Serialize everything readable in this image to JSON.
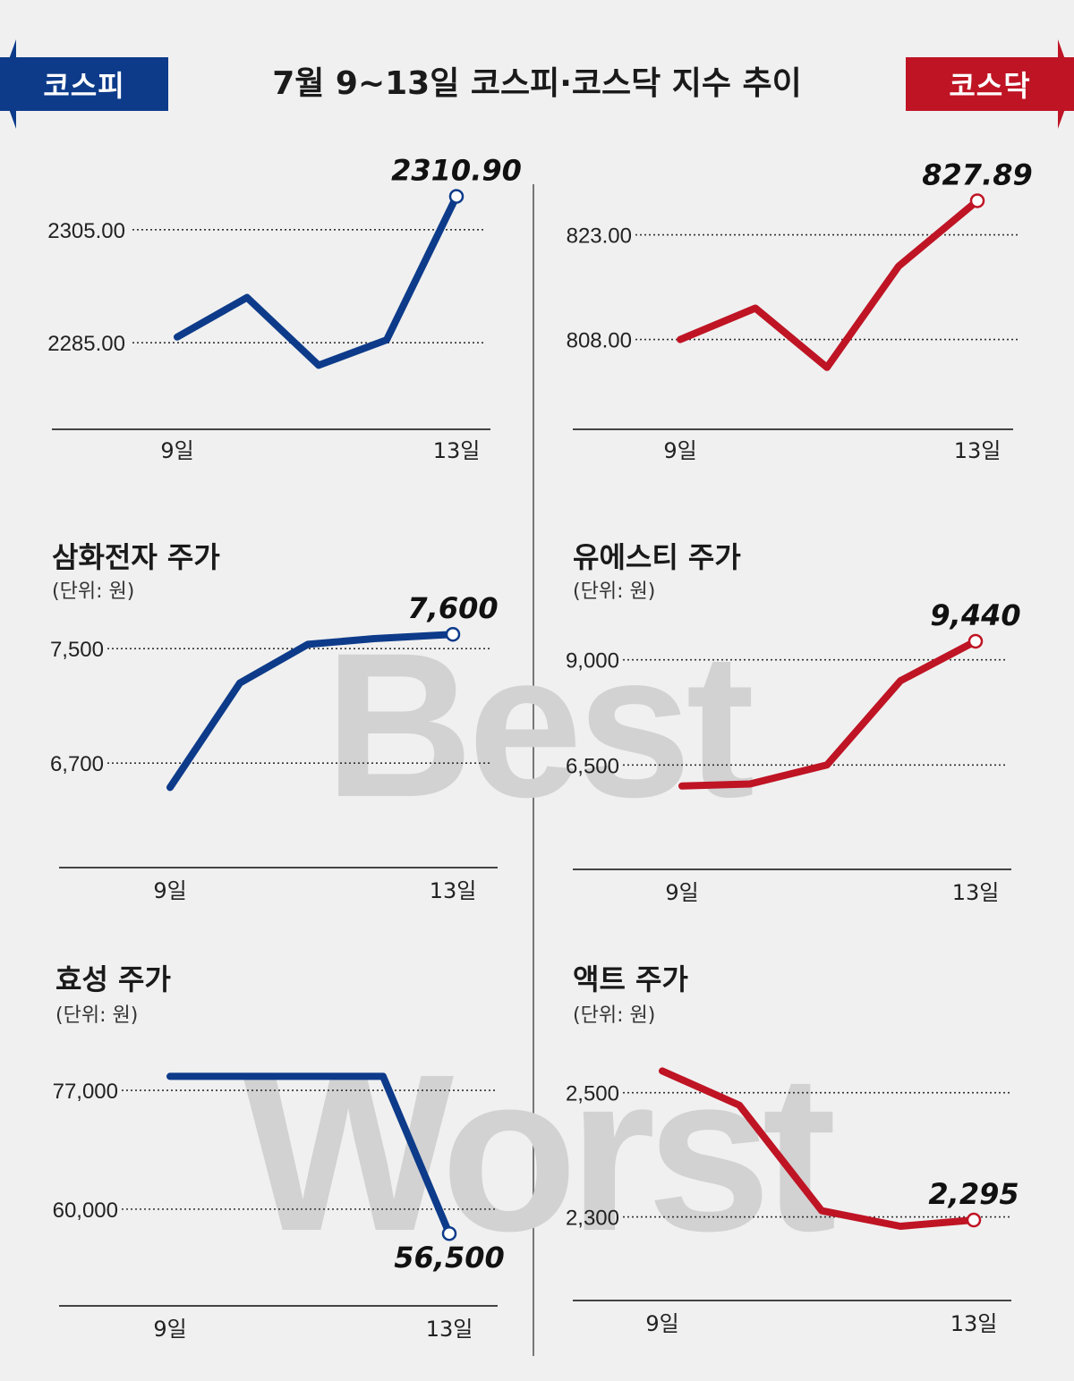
{
  "header": {
    "title": "7월 9~13일  코스피·코스닥 지수 추이",
    "kospi_label": "코스피",
    "kosdaq_label": "코스닥"
  },
  "watermarks": {
    "best": "Best",
    "worst": "Worst"
  },
  "colors": {
    "kospi": "#0d3b8a",
    "kosdaq": "#bf1424"
  },
  "chart_data": [
    {
      "type": "line",
      "title": "",
      "unit": "",
      "color": "#0d3b8a",
      "x_labels": [
        "9일",
        "",
        "",
        "",
        "13일"
      ],
      "values": [
        2286,
        2293,
        2281,
        2285.5,
        2310.9
      ],
      "ylim": [
        2276,
        2314
      ],
      "grid_values": [
        2305.0,
        2285.0
      ],
      "grid_labels": [
        "2305.00",
        "2285.00"
      ],
      "end_label": "2310.90",
      "end_label_position": "above"
    },
    {
      "type": "line",
      "title": "",
      "unit": "",
      "color": "#bf1424",
      "x_labels": [
        "9일",
        "",
        "",
        "",
        "13일"
      ],
      "values": [
        808.0,
        812.5,
        804.0,
        818.5,
        827.89
      ],
      "ylim": [
        800,
        830
      ],
      "grid_values": [
        823.0,
        808.0
      ],
      "grid_labels": [
        "823.00",
        "808.00"
      ],
      "end_label": "827.89",
      "end_label_position": "above"
    },
    {
      "type": "line",
      "title": "삼화전자 주가",
      "unit": "(단위: 원)",
      "color": "#0d3b8a",
      "x_labels": [
        "9일",
        "",
        "",
        "",
        "13일"
      ],
      "values": [
        6530,
        7260,
        7530,
        7570,
        7600
      ],
      "ylim": [
        6220,
        7720
      ],
      "grid_values": [
        7500,
        6700
      ],
      "grid_labels": [
        "7,500",
        "6,700"
      ],
      "end_label": "7,600",
      "end_label_position": "above"
    },
    {
      "type": "line",
      "title": "유에스티 주가",
      "unit": "(단위: 원)",
      "color": "#bf1424",
      "x_labels": [
        "9일",
        "",
        "",
        "",
        "13일"
      ],
      "values": [
        6000,
        6050,
        6500,
        8500,
        9440
      ],
      "ylim": [
        4700,
        9800
      ],
      "grid_values": [
        9000,
        6500
      ],
      "grid_labels": [
        "9,000",
        "6,500"
      ],
      "end_label": "9,440",
      "end_label_position": "above"
    },
    {
      "type": "line",
      "title": "효성 주가",
      "unit": "(단위: 원)",
      "color": "#0d3b8a",
      "x_labels": [
        "9일",
        "",
        "",
        "",
        "13일"
      ],
      "values": [
        79000,
        79000,
        79000,
        79000,
        56500
      ],
      "ylim": [
        50000,
        82000
      ],
      "grid_values": [
        77000,
        60000
      ],
      "grid_labels": [
        "77,000",
        "60,000"
      ],
      "end_label": "56,500",
      "end_label_position": "below"
    },
    {
      "type": "line",
      "title": "액트 주가",
      "unit": "(단위: 원)",
      "color": "#bf1424",
      "x_labels": [
        "9일",
        "",
        "",
        "",
        "13일"
      ],
      "values": [
        2535,
        2480,
        2310,
        2285,
        2295
      ],
      "ylim": [
        2200,
        2560
      ],
      "grid_values": [
        2500,
        2300
      ],
      "grid_labels": [
        "2,500",
        "2,300"
      ],
      "end_label": "2,295",
      "end_label_position": "above"
    }
  ]
}
